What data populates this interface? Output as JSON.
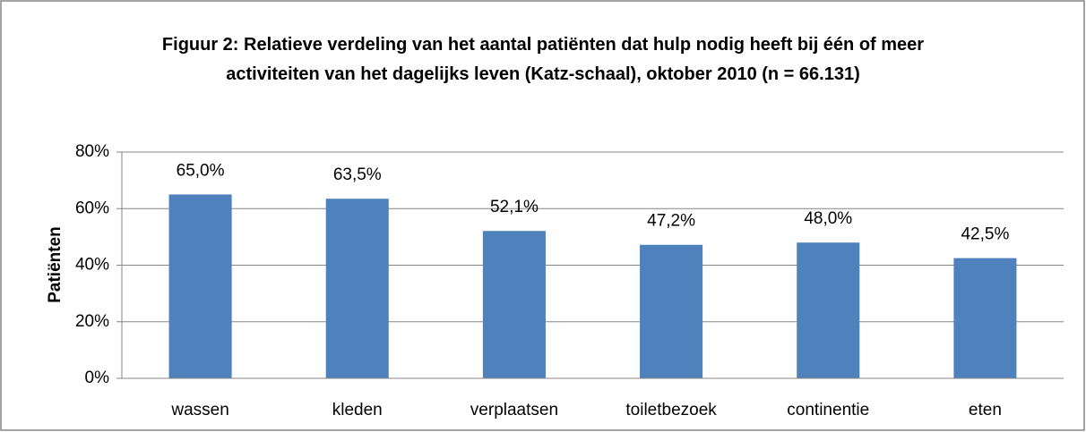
{
  "chart_data": {
    "type": "bar",
    "title": "Figuur 2: Relatieve verdeling van het aantal patiënten dat hulp nodig heeft bij één of meer activiteiten van het dagelijks leven (Katz-schaal), oktober 2010 (n = 66.131)",
    "ylabel": "Patiënten",
    "categories": [
      "wassen",
      "kleden",
      "verplaatsen",
      "toiletbezoek",
      "continentie",
      "eten"
    ],
    "values": [
      65.0,
      63.5,
      52.1,
      47.2,
      48.0,
      42.5
    ],
    "value_labels": [
      "65,0%",
      "63,5%",
      "52,1%",
      "47,2%",
      "48,0%",
      "42,5%"
    ],
    "color": "#4f81bd",
    "ylim": [
      0,
      80
    ],
    "yticks": [
      {
        "value": 0,
        "label": "0%"
      },
      {
        "value": 20,
        "label": "20%"
      },
      {
        "value": 40,
        "label": "40%"
      },
      {
        "value": 60,
        "label": "60%"
      },
      {
        "value": 80,
        "label": "80%"
      }
    ],
    "grid": true
  }
}
